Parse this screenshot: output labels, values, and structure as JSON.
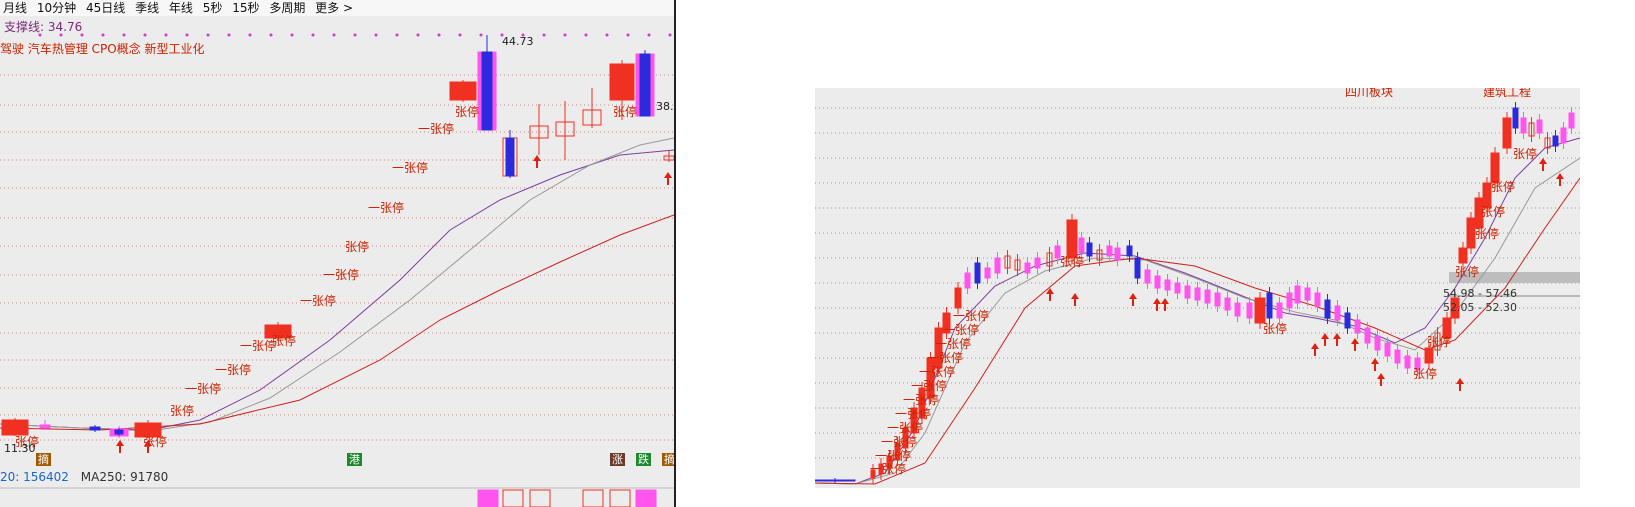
{
  "toolbar": {
    "periods": [
      "月线",
      "10分钟",
      "45日线",
      "季线",
      "年线",
      "5秒",
      "15秒",
      "多周期",
      "更多 >"
    ]
  },
  "left_chart": {
    "support_line": "支撑线: 34.76",
    "concept_tags": "驾驶 汽车热管理 CPO概念 新型工业化",
    "high_price": "44.73",
    "right_price": "38.",
    "low_price": "11.30",
    "limit_up_label": "张停",
    "limit_up_label_alt": "一张停",
    "ma_values": {
      "ma120": "20: 156402",
      "ma250": "MA250: 91780"
    },
    "badges": [
      "摘",
      "港",
      "涨",
      "跌",
      "摘"
    ]
  },
  "right_chart": {
    "sector_label": "四川板块",
    "sector_label_2": "建筑工程",
    "price_band_1": "54.98 - 57.46",
    "price_band_2": "52.05 - 52.30",
    "limit_up_label": "张停",
    "limit_up_label_alt": "一张停"
  },
  "colors": {
    "up": "#f03020",
    "down": "#2b2bdd",
    "pink": "#ff55ee",
    "ma_short": "#7b3fa0",
    "ma_mid": "#999999",
    "ma_long": "#cc2222",
    "grid": "#cc8888",
    "bg": "#ececec"
  }
}
